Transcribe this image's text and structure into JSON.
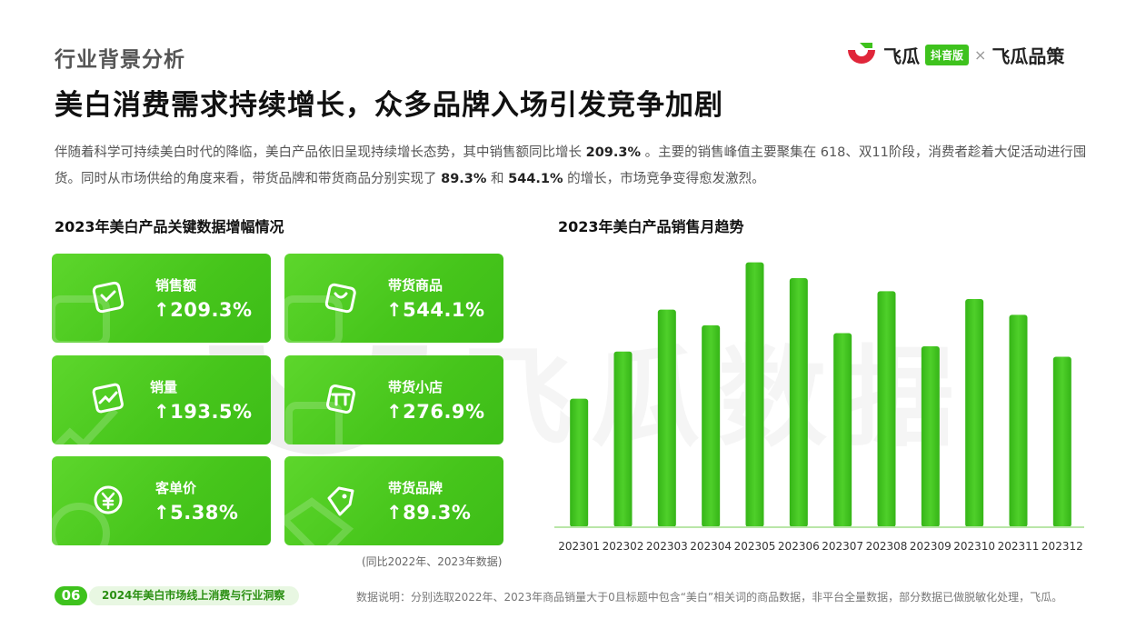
{
  "header": {
    "section_tag": "行业背景分析",
    "headline": "美白消费需求持续增长，众多品牌入场引发竞争加剧"
  },
  "logo": {
    "brand": "飞瓜",
    "badge": "抖音版",
    "separator": "×",
    "partner": "飞瓜品策"
  },
  "intro": {
    "p1": "伴随着科学可持续美白时代的降临，美白产品依旧呈现持续增长态势，其中销售额同比增长 ",
    "v1": "209.3%",
    "p2": " 。主要的销售峰值主要聚集在 618、双11阶段，消费者趁着大促活动进行囤货。同时从市场供给的角度来看，带货品牌和带货商品分别实现了 ",
    "v2": "89.3%",
    "p3": " 和 ",
    "v3": "544.1%",
    "p4": " 的增长，市场竞争变得愈发激烈。"
  },
  "kpi_panel": {
    "title": "2023年美白产品关键数据增幅情况",
    "cards": [
      {
        "label": "销售额",
        "value": "209.3%",
        "icon": "sales-icon"
      },
      {
        "label": "带货商品",
        "value": "544.1%",
        "icon": "shopping-bag-icon"
      },
      {
        "label": "销量",
        "value": "193.5%",
        "icon": "trend-chart-icon"
      },
      {
        "label": "带货小店",
        "value": "276.9%",
        "icon": "store-icon"
      },
      {
        "label": "客单价",
        "value": "5.38%",
        "icon": "yuan-coin-icon"
      },
      {
        "label": "带货品牌",
        "value": "89.3%",
        "icon": "tag-icon"
      }
    ],
    "arrow": "↑",
    "note": "(同比2022年、2023年数据)"
  },
  "chart_panel": {
    "title": "2023年美白产品销售月趋势"
  },
  "chart_data": {
    "type": "bar",
    "title": "2023年美白产品销售月趋势",
    "categories": [
      "202301",
      "202302",
      "202303",
      "202304",
      "202305",
      "202306",
      "202307",
      "202308",
      "202309",
      "202310",
      "202311",
      "202312"
    ],
    "values": [
      49,
      67,
      83,
      77,
      101,
      95,
      74,
      90,
      69,
      87,
      81,
      65
    ],
    "ylim": [
      0,
      104
    ],
    "y_axis_visible": false,
    "grid": false,
    "bar_color": "#35b517",
    "bar_color_light": "#4fd02a",
    "baseline_color": "#b9e6a8"
  },
  "watermark": "飞瓜数据",
  "footer": {
    "page_number": "06",
    "report_title": "2024年美白市场线上消费与行业洞察",
    "data_note": "数据说明：分别选取2022年、2023年商品销量大于0且标题中包含“美白”相关词的商品数据，非平台全量数据，部分数据已做脱敏化处理，飞瓜。"
  },
  "colors": {
    "accent": "#3ec21d",
    "card_start": "#5dd62c",
    "card_end": "#3dbd18",
    "logo_red": "#e0263a"
  }
}
